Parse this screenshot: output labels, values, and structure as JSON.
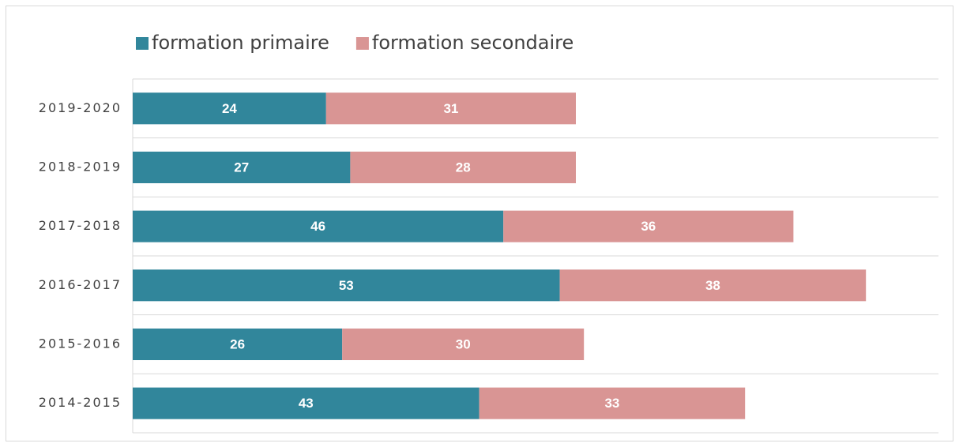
{
  "chart_data": {
    "type": "stacked-bar-horizontal",
    "categories": [
      "2019-2020",
      "2018-2019",
      "2017-2018",
      "2016-2017",
      "2015-2016",
      "2014-2015"
    ],
    "series": [
      {
        "name": "formation primaire",
        "color": "#31869b",
        "values": [
          24,
          27,
          46,
          53,
          26,
          43
        ]
      },
      {
        "name": "formation secondaire",
        "color": "#d99594",
        "values": [
          31,
          28,
          36,
          38,
          30,
          33
        ]
      }
    ],
    "xlim": [
      0,
      100
    ],
    "legend": "top"
  }
}
